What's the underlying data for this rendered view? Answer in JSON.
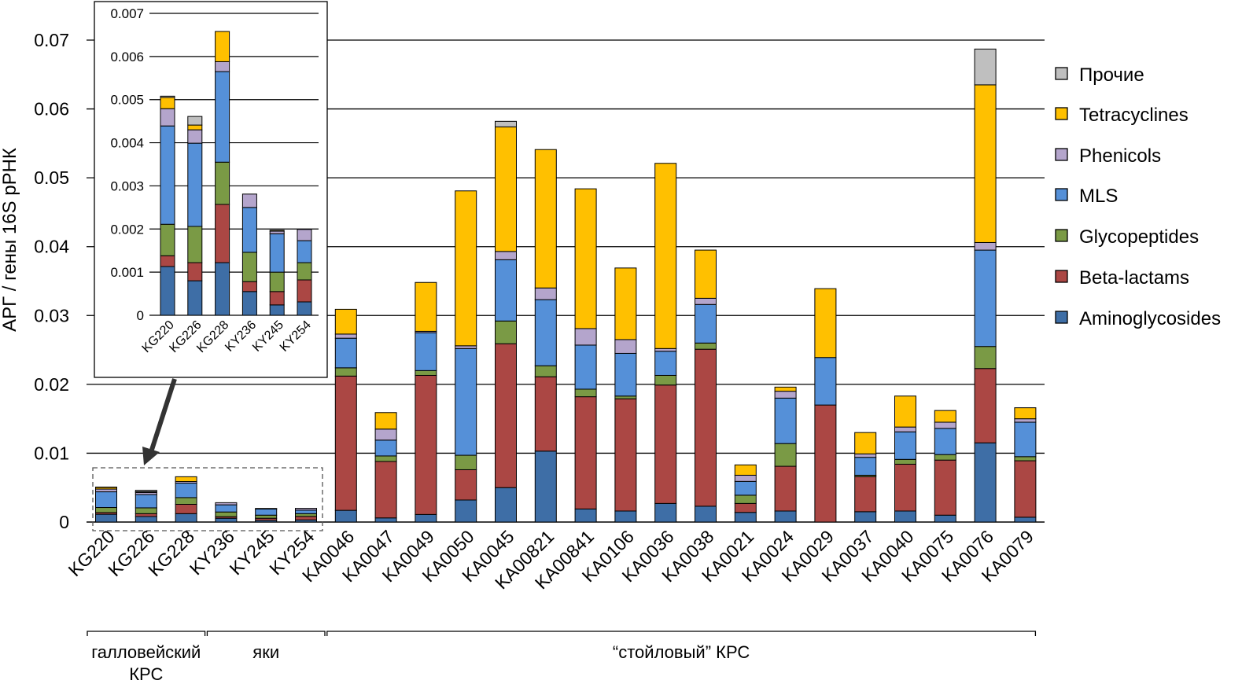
{
  "chart_data": {
    "type": "bar",
    "stacked": true,
    "ylabel": "АРГ / гены 16S рРНК",
    "ylim": [
      0,
      0.07
    ],
    "yticks": [
      "0",
      "0.01",
      "0.02",
      "0.03",
      "0.04",
      "0.05",
      "0.06",
      "0.07"
    ],
    "grid": true,
    "legend_position": "right",
    "categories": [
      "KG220",
      "KG226",
      "KG228",
      "KY236",
      "KY245",
      "KY254",
      "KA0046",
      "KA0047",
      "KA0049",
      "KA0050",
      "KA0045",
      "KA00821",
      "KA00841",
      "KA0106",
      "KA0036",
      "KA0038",
      "KA0021",
      "KA0024",
      "KA0029",
      "KA0037",
      "KA0040",
      "KA0075",
      "KA0076",
      "KA0079"
    ],
    "series": [
      {
        "name": "Aminoglycosides",
        "color": "#3e6ea6",
        "values": [
          0.00113,
          0.0008,
          0.00122,
          0.00055,
          0.00024,
          0.00031,
          0.0017,
          0.0006,
          0.0011,
          0.0032,
          0.005,
          0.0103,
          0.0019,
          0.0016,
          0.0027,
          0.0023,
          0.0014,
          0.0016,
          0.0,
          0.0015,
          0.0016,
          0.001,
          0.0115,
          0.0007
        ]
      },
      {
        "name": "Beta-lactams",
        "color": "#ab4744",
        "values": [
          0.00025,
          0.00042,
          0.00135,
          0.00023,
          0.00031,
          0.00051,
          0.0195,
          0.0082,
          0.0202,
          0.0044,
          0.0209,
          0.0108,
          0.0163,
          0.0163,
          0.0172,
          0.0228,
          0.0013,
          0.0065,
          0.017,
          0.0051,
          0.0068,
          0.008,
          0.0108,
          0.0082
        ]
      },
      {
        "name": "Glycopeptides",
        "color": "#7a9a45",
        "values": [
          0.00073,
          0.00084,
          0.00098,
          0.00068,
          0.00045,
          0.0004,
          0.0012,
          0.0008,
          0.0007,
          0.0021,
          0.0033,
          0.0016,
          0.0011,
          0.0004,
          0.0014,
          0.0009,
          0.0012,
          0.0033,
          0.0,
          0.0002,
          0.0007,
          0.0008,
          0.0032,
          0.0006
        ]
      },
      {
        "name": "MLS",
        "color": "#5590d8",
        "values": [
          0.00228,
          0.00193,
          0.0021,
          0.00104,
          0.00089,
          0.00051,
          0.0043,
          0.0023,
          0.0055,
          0.0155,
          0.0089,
          0.0096,
          0.0064,
          0.0062,
          0.0035,
          0.0056,
          0.002,
          0.0066,
          0.0069,
          0.0026,
          0.004,
          0.0038,
          0.014,
          0.005
        ]
      },
      {
        "name": "Phenicols",
        "color": "#b4a5cc",
        "values": [
          0.0004,
          0.00031,
          0.00023,
          0.00031,
          6e-05,
          0.00026,
          0.0006,
          0.0016,
          0.0002,
          0.0004,
          0.0012,
          0.0017,
          0.0024,
          0.002,
          0.0004,
          0.0009,
          0.0009,
          0.001,
          0.0,
          0.0005,
          0.0007,
          0.0009,
          0.0011,
          0.0005
        ]
      },
      {
        "name": "Tetracyclines",
        "color": "#ffc000",
        "values": [
          0.00026,
          0.00011,
          0.0007,
          0.0,
          2e-05,
          0.0,
          0.0036,
          0.0024,
          0.0071,
          0.0225,
          0.0181,
          0.0201,
          0.0203,
          0.0104,
          0.0269,
          0.007,
          0.0015,
          0.0006,
          0.01,
          0.0031,
          0.0045,
          0.0017,
          0.0229,
          0.0016
        ]
      },
      {
        "name": "Прочие",
        "color": "#bfbfbf",
        "values": [
          3e-05,
          0.0002,
          0.0,
          0.0,
          0.0,
          0.0,
          0,
          0,
          0,
          0,
          0.0008,
          0,
          0,
          0,
          0,
          0,
          0,
          0,
          0,
          0,
          0,
          0,
          0.0052,
          0
        ]
      }
    ],
    "inset": {
      "categories": [
        "KG220",
        "KG226",
        "KG228",
        "KY236",
        "KY245",
        "KY254"
      ],
      "ylim": [
        0,
        0.007
      ],
      "yticks": [
        "0",
        "0.001",
        "0.002",
        "0.003",
        "0.004",
        "0.005",
        "0.006",
        "0.007"
      ]
    },
    "groups": [
      {
        "label_lines": [
          "галловейский",
          "КРС"
        ],
        "from": 0,
        "to": 1
      },
      {
        "label_lines": [
          "яки"
        ],
        "from": 3,
        "to": 4
      },
      {
        "label_lines": [
          "“стойловый” КРС"
        ],
        "from": 6,
        "to": 23
      }
    ]
  }
}
